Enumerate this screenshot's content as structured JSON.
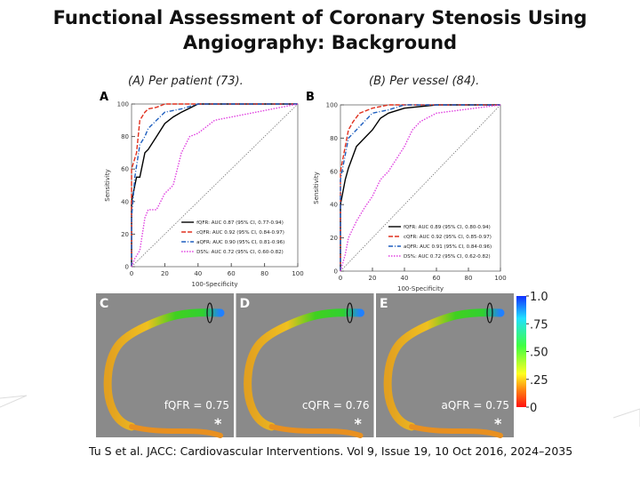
{
  "header": {
    "title": "Functional Assessment of Coronary Stenosis Using Angiography: Background"
  },
  "captions": [
    "(A) Per patient (73).",
    "(B) Per vessel (84)."
  ],
  "chart_data": [
    {
      "type": "line",
      "panel": "A",
      "xlabel": "100-Specificity",
      "ylabel": "Sensitivity",
      "xlim": [
        0,
        100
      ],
      "ylim": [
        0,
        100
      ],
      "xticks": [
        0,
        20,
        40,
        60,
        80,
        100
      ],
      "yticks": [
        0,
        20,
        40,
        60,
        80,
        100
      ],
      "series": [
        {
          "name": "fQFR: AUC 0.87 (95% CI, 0.77-0.94)",
          "color": "#000000",
          "dash": "solid",
          "x": [
            0,
            0,
            2,
            3,
            5,
            8,
            10,
            15,
            20,
            25,
            30,
            40,
            50,
            100
          ],
          "values": [
            0,
            40,
            50,
            55,
            55,
            70,
            72,
            80,
            88,
            92,
            95,
            100,
            100,
            100
          ]
        },
        {
          "name": "cQFR: AUC 0.92 (95% CI, 0.84-0.97)",
          "color": "#e0301e",
          "dash": "dashed",
          "x": [
            0,
            0,
            3,
            5,
            8,
            10,
            15,
            20,
            30,
            100
          ],
          "values": [
            0,
            60,
            70,
            90,
            95,
            97,
            98,
            100,
            100,
            100
          ]
        },
        {
          "name": "aQFR: AUC 0.90 (95% CI, 0.81-0.96)",
          "color": "#1f5fbf",
          "dash": "dashdot",
          "x": [
            0,
            0,
            2,
            5,
            8,
            10,
            15,
            20,
            30,
            40,
            100
          ],
          "values": [
            0,
            30,
            55,
            75,
            80,
            85,
            90,
            95,
            97,
            100,
            100
          ]
        },
        {
          "name": "DS%: AUC 0.72 (95% CI, 0.60-0.82)",
          "color": "#e040e0",
          "dash": "dotted",
          "x": [
            0,
            2,
            5,
            8,
            10,
            15,
            20,
            25,
            30,
            35,
            40,
            50,
            100
          ],
          "values": [
            0,
            5,
            10,
            30,
            35,
            35,
            45,
            50,
            70,
            80,
            82,
            90,
            100
          ]
        }
      ]
    },
    {
      "type": "line",
      "panel": "B",
      "xlabel": "100-Specificity",
      "ylabel": "Sensitivity",
      "xlim": [
        0,
        100
      ],
      "ylim": [
        0,
        100
      ],
      "xticks": [
        0,
        20,
        40,
        60,
        80,
        100
      ],
      "yticks": [
        0,
        20,
        40,
        60,
        80,
        100
      ],
      "series": [
        {
          "name": "fQFR: AUC 0.89 (95% CI, 0.80-0.94)",
          "color": "#000000",
          "dash": "solid",
          "x": [
            0,
            0,
            3,
            5,
            10,
            15,
            20,
            25,
            30,
            40,
            60,
            100
          ],
          "values": [
            0,
            40,
            55,
            62,
            75,
            80,
            85,
            92,
            95,
            98,
            100,
            100
          ]
        },
        {
          "name": "cQFR: AUC 0.92 (95% CI, 0.85-0.97)",
          "color": "#e0301e",
          "dash": "dashed",
          "x": [
            0,
            0,
            3,
            5,
            8,
            12,
            20,
            30,
            100
          ],
          "values": [
            0,
            60,
            75,
            85,
            90,
            95,
            98,
            100,
            100
          ]
        },
        {
          "name": "aQFR: AUC 0.91 (95% CI, 0.84-0.96)",
          "color": "#1f5fbf",
          "dash": "dashdot",
          "x": [
            0,
            0,
            3,
            5,
            10,
            15,
            20,
            30,
            40,
            100
          ],
          "values": [
            0,
            55,
            70,
            80,
            85,
            90,
            95,
            97,
            100,
            100
          ]
        },
        {
          "name": "DS%: AUC 0.72 (95% CI, 0.62-0.82)",
          "color": "#e040e0",
          "dash": "dotted",
          "x": [
            0,
            3,
            5,
            10,
            15,
            20,
            25,
            30,
            40,
            45,
            50,
            60,
            100
          ],
          "values": [
            0,
            10,
            20,
            30,
            38,
            45,
            55,
            60,
            75,
            85,
            90,
            95,
            100
          ]
        }
      ]
    }
  ],
  "images": [
    {
      "panel": "C",
      "label": "fQFR = 0.75",
      "marker": "*"
    },
    {
      "panel": "D",
      "label": "cQFR = 0.76",
      "marker": "*"
    },
    {
      "panel": "E",
      "label": "aQFR = 0.75",
      "marker": "*"
    }
  ],
  "colorbar": {
    "ticks": [
      {
        "value": 1,
        "label": "1.0"
      },
      {
        "value": 0.75,
        "label": ".75"
      },
      {
        "value": 0.5,
        "label": ".50"
      },
      {
        "value": 0.25,
        "label": ".25"
      },
      0
    ]
  },
  "citation": "Tu S et al. JACC: Cardiovascular Interventions. Vol 9, Issue 19, 10 Oct 2016, 2024–2035"
}
